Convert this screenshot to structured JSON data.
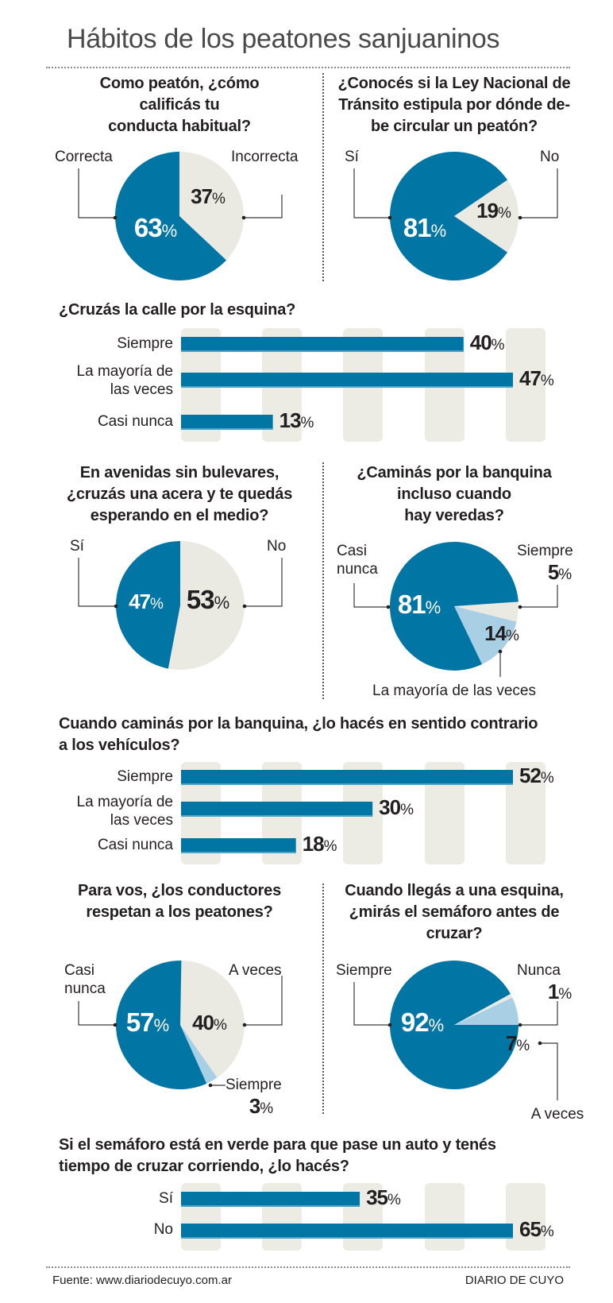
{
  "header": {
    "title": "Hábitos de los peatones sanjuaninos"
  },
  "footer": {
    "source": "Fuente: www.diariodecuyo.com.ar",
    "brand": "DIARIO DE CUYO"
  },
  "colors": {
    "blue": "#0175a4",
    "light_blue": "#a8cfe4",
    "beige": "#eae9e2",
    "column": "#ecebe4"
  },
  "chart_data": [
    {
      "type": "pie",
      "title": "Como peatón, ¿cómo calificás tu conducta habitual?",
      "title_lines": [
        "Como peatón, ¿cómo",
        "calificás tu",
        "conducta habitual?"
      ],
      "slices": [
        {
          "label": "Incorrecta",
          "value": 37,
          "display": "37",
          "color": "beige"
        },
        {
          "label": "Correcta",
          "value": 63,
          "display": "63",
          "color": "blue"
        }
      ]
    },
    {
      "type": "pie",
      "title": "¿Conocés si la Ley Nacional de Tránsito estipula por dónde debe circular un peatón?",
      "title_lines": [
        "¿Conocés si la Ley Nacional de",
        "Tránsito estipula por dónde de-",
        "be circular un peatón?"
      ],
      "slices": [
        {
          "label": "No",
          "value": 19,
          "display": "19",
          "color": "beige"
        },
        {
          "label": "Sí",
          "value": 81,
          "display": "81",
          "color": "blue"
        }
      ]
    },
    {
      "type": "bar",
      "title": "¿Cruzás la calle por la esquina?",
      "categories": [
        "Siempre",
        "La mayoría de las veces",
        "Casi nunca"
      ],
      "category_lines": [
        [
          "Siempre"
        ],
        [
          "La mayoría de",
          "las veces"
        ],
        [
          "Casi nunca"
        ]
      ],
      "values": [
        40,
        47,
        13
      ],
      "unit": "%"
    },
    {
      "type": "pie",
      "title": "En avenidas sin bulevares, ¿cruzás una acera y te quedás esperando en el medio?",
      "title_lines": [
        "En avenidas sin bulevares,",
        "¿cruzás una acera y te quedás",
        "esperando en el medio?"
      ],
      "slices": [
        {
          "label": "No",
          "value": 53,
          "display": "53",
          "color": "beige"
        },
        {
          "label": "Sí",
          "value": 47,
          "display": "47",
          "color": "blue"
        }
      ]
    },
    {
      "type": "pie",
      "title": "¿Caminás por la banquina incluso cuando hay veredas?",
      "title_lines": [
        "¿Caminás por la banquina",
        "incluso cuando",
        "hay veredas?"
      ],
      "slices": [
        {
          "label": "Siempre",
          "value": 5,
          "display": "5",
          "color": "beige"
        },
        {
          "label": "La mayoría de las veces",
          "value": 14,
          "display": "14",
          "color": "light_blue"
        },
        {
          "label": "Casi nunca",
          "value": 81,
          "display": "81",
          "color": "blue"
        }
      ]
    },
    {
      "type": "bar",
      "title": "Cuando caminás por la banquina, ¿lo hacés en sentido contrario a los vehículos?",
      "title_lines": [
        "Cuando caminás por la banquina, ¿lo hacés en sentido contrario",
        "a los vehículos?"
      ],
      "categories": [
        "Siempre",
        "La mayoría de las veces",
        "Casi nunca"
      ],
      "category_lines": [
        [
          "Siempre"
        ],
        [
          "La mayoría de",
          "las veces"
        ],
        [
          "Casi nunca"
        ]
      ],
      "values": [
        52,
        30,
        18
      ],
      "unit": "%"
    },
    {
      "type": "pie",
      "title": "Para vos, ¿los conductores respetan a los peatones?",
      "title_lines": [
        "Para vos, ¿los conductores",
        "respetan a los peatones?"
      ],
      "slices": [
        {
          "label": "A veces",
          "value": 40,
          "display": "40",
          "color": "beige"
        },
        {
          "label": "Siempre",
          "value": 3,
          "display": "3",
          "color": "light_blue"
        },
        {
          "label": "Casi nunca",
          "value": 57,
          "display": "57",
          "color": "blue"
        }
      ]
    },
    {
      "type": "pie",
      "title": "Cuando llegás a una esquina, ¿mirás el semáforo antes de cruzar?",
      "title_lines": [
        "Cuando llegás a una esquina,",
        "¿mirás el semáforo antes de",
        "cruzar?"
      ],
      "slices": [
        {
          "label": "Siempre",
          "value": 92,
          "display": "92",
          "color": "blue"
        },
        {
          "label": "Nunca",
          "value": 1,
          "display": "1",
          "color": "beige"
        },
        {
          "label": "A veces",
          "value": 7,
          "display": "7",
          "color": "light_blue"
        }
      ]
    },
    {
      "type": "bar",
      "title": "Si el semáforo está en verde para que pase un auto y tenés tiempo de cruzar corriendo, ¿lo hacés?",
      "title_lines": [
        "Si el semáforo está en verde para que pase un auto y tenés",
        "tiempo de cruzar corriendo, ¿lo hacés?"
      ],
      "categories": [
        "Sí",
        "No"
      ],
      "category_lines": [
        [
          "Sí"
        ],
        [
          "No"
        ]
      ],
      "values": [
        35,
        65
      ],
      "unit": "%"
    }
  ]
}
